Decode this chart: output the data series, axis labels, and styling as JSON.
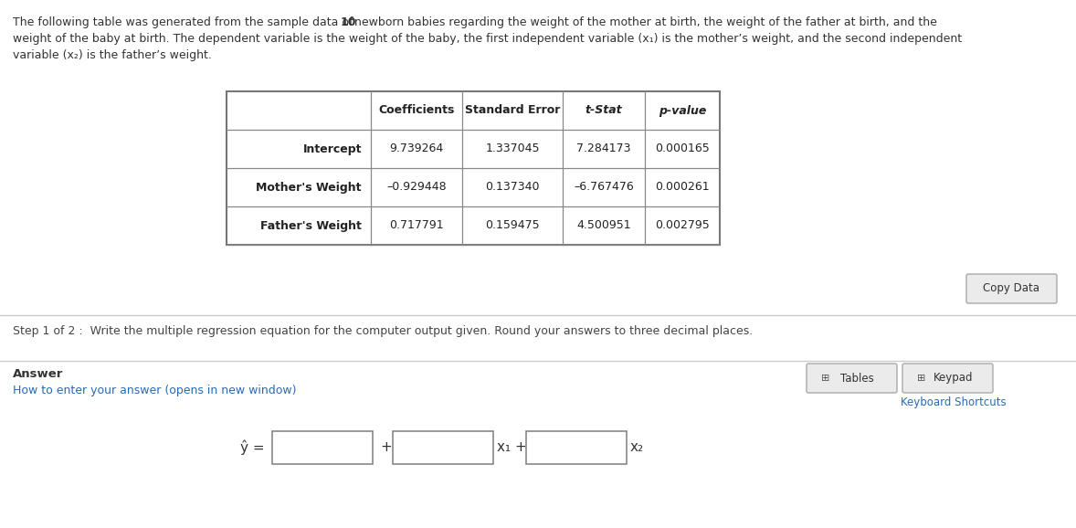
{
  "bg_color": "#f0f0f0",
  "white": "#ffffff",
  "table_headers": [
    "",
    "Coefficients",
    "Standard Error",
    "t-Stat",
    "p-value"
  ],
  "table_rows": [
    [
      "Intercept",
      "9.739264",
      "1.337045",
      "7.284173",
      "0.000165"
    ],
    [
      "Mother's Weight",
      "–0.929448",
      "0.137340",
      "–6.767476",
      "0.000261"
    ],
    [
      "Father's Weight",
      "0.717791",
      "0.159475",
      "4.500951",
      "0.002795"
    ]
  ],
  "step_text": "Step 1 of 2 :  Write the multiple regression equation for the computer output given. Round your answers to three decimal places.",
  "answer_label": "Answer",
  "answer_link": "How to enter your answer (opens in new window)",
  "copy_data_label": "Copy Data",
  "tables_label": "Tables",
  "keypad_label": "Keypad",
  "keyboard_label": "Keyboard Shortcuts",
  "eq_label": "ŷ =",
  "plus_sign": "+",
  "x1_label": "x₁ +",
  "x2_label": "x₂",
  "desc_part1": "The following table was generated from the sample data of ",
  "desc_bold": "10",
  "desc_part2": "newborn babies regarding the weight of the mother at birth, the weight of the father at birth, and the",
  "desc_line2": "weight of the baby at birth. The dependent variable is the weight of the baby, the first independent variable (x₁) is the mother’s weight, and the second independent",
  "desc_line3": "variable (x₂) is the father’s weight."
}
